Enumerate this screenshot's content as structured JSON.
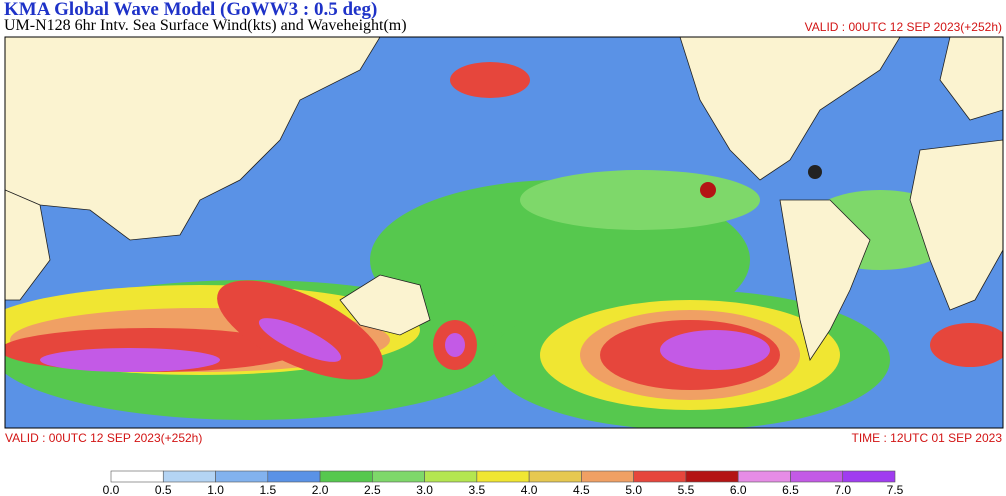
{
  "header": {
    "title": "KMA  Global Wave Model (GoWW3 : 0.5 deg)",
    "subtitle": "UM-N128  6hr Intv. Sea Surface Wind(kts) and Waveheight(m)",
    "valid_top": "VALID : 00UTC 12 SEP 2023(+252h)"
  },
  "footer": {
    "valid": "VALID : 00UTC 12 SEP 2023(+252h)",
    "time": "TIME : 12UTC 01 SEP 2023"
  },
  "colorbar": {
    "labels": [
      "0.0",
      "0.5",
      "1.0",
      "1.5",
      "2.0",
      "2.5",
      "3.0",
      "3.5",
      "4.0",
      "4.5",
      "5.0",
      "5.5",
      "6.0",
      "6.5",
      "7.0",
      "7.5"
    ],
    "colors": [
      "#ffffff",
      "#b4d4f4",
      "#82b2ee",
      "#5a92e6",
      "#56c84e",
      "#7ed86a",
      "#b4e650",
      "#f0e632",
      "#e6c850",
      "#f0a064",
      "#e6463c",
      "#b41414",
      "#e68ce6",
      "#c35ae6",
      "#a03cf0"
    ]
  }
}
